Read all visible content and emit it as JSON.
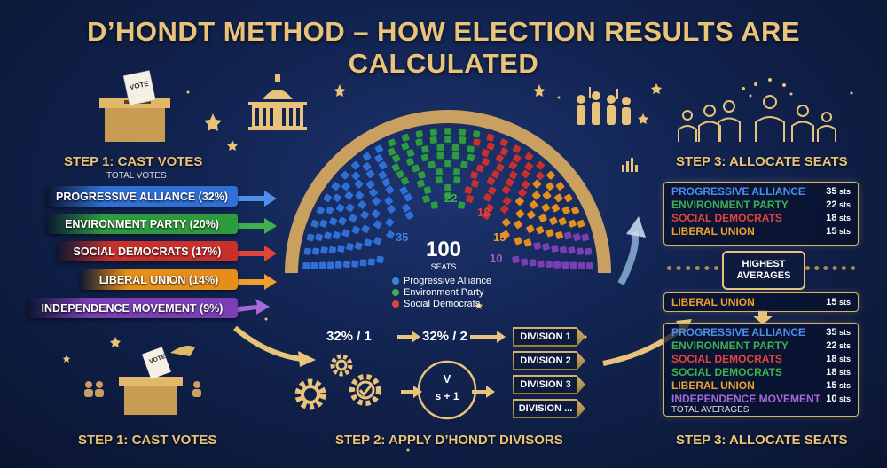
{
  "title": "D’HONDT METHOD – HOW ELECTION RESULTS ARE CALCULATED",
  "step1": {
    "heading": "STEP 1: CAST VOTES",
    "subheading": "TOTAL VOTES",
    "ballot_label": "VOTE",
    "parties": [
      {
        "label": "PROGRESSIVE ALLIANCE (32%)",
        "color": "#2f6fd6"
      },
      {
        "label": "ENVIRONMENT PARTY (20%)",
        "color": "#2e9a3e"
      },
      {
        "label": "SOCIAL DEMOCRATS (17%)",
        "color": "#c9302c"
      },
      {
        "label": "LIBERAL UNION (14%)",
        "color": "#e58e1a"
      },
      {
        "label": "INDEPENDENCE MOVEMENT (9%)",
        "color": "#7b3fb5"
      }
    ],
    "bottom_heading": "STEP 1: CAST VOTES",
    "bottom_ballot_label": "VOTE"
  },
  "parliament": {
    "total": "100",
    "total_label": "SEATS",
    "seat_labels": [
      {
        "value": "35",
        "color": "#3c82e0"
      },
      {
        "value": "22",
        "color": "#3fb04f"
      },
      {
        "value": "18",
        "color": "#e0453a"
      },
      {
        "value": "15",
        "color": "#f09a2a"
      },
      {
        "value": "10",
        "color": "#9b5fd0"
      }
    ],
    "legend": [
      {
        "label": "Progressive Alliance",
        "color": "#3c82e0"
      },
      {
        "label": "Environment Party",
        "color": "#3fb04f"
      },
      {
        "label": "Social Democrats",
        "color": "#e0453a"
      }
    ]
  },
  "chart_data": {
    "type": "parliament",
    "total_seats": 100,
    "categories": [
      "Progressive Alliance",
      "Environment Party",
      "Social Democrats",
      "Liberal Union",
      "Independence Movement"
    ],
    "values": [
      35,
      22,
      18,
      15,
      10
    ],
    "colors": [
      "#2f6fd6",
      "#2e9a3e",
      "#c9302c",
      "#e58e1a",
      "#7b3fb5"
    ]
  },
  "step2": {
    "heading": "STEP 2: APPLY D’HONDT DIVISORS",
    "calc1": "32% / 1",
    "calc2": "32% / 2",
    "formula_top": "V",
    "formula_bottom": "s + 1",
    "divisions": [
      "DIVISION 1",
      "DIVISION 2",
      "DIVISION 3",
      "DIVISION ..."
    ]
  },
  "step3": {
    "heading": "STEP 3: ALLOCATE SEATS",
    "bottom_heading": "STEP 3: ALLOCATE SEATS",
    "seat_unit": "sts",
    "top_panel": [
      {
        "name": "PROGRESSIVE ALLIANCE",
        "seats": "35",
        "color": "#4f8fe8"
      },
      {
        "name": "ENVIRONMENT PARTY",
        "seats": "22",
        "color": "#3fb04f"
      },
      {
        "name": "SOCIAL DEMOCRATS",
        "seats": "18",
        "color": "#e0453a"
      },
      {
        "name": "LIBERAL UNION",
        "seats": "15",
        "color": "#f0a02a"
      }
    ],
    "highest_averages": "HIGHEST AVERAGES",
    "single_row": {
      "name": "LIBERAL UNION",
      "seats": "15",
      "color": "#f0a02a"
    },
    "bottom_panel": [
      {
        "name": "PROGRESSIVE ALLIANCE",
        "seats": "35",
        "color": "#4f8fe8"
      },
      {
        "name": "ENVIRONMENT PARTY",
        "seats": "22",
        "color": "#3fb04f"
      },
      {
        "name": "SOCIAL DEMOCRATS",
        "seats": "18",
        "color": "#e0453a"
      },
      {
        "name": "SOCIAL DEMOCRATS",
        "seats": "18",
        "color": "#3fb04f"
      },
      {
        "name": "LIBERAL UNION",
        "seats": "15",
        "color": "#f0a02a"
      },
      {
        "name": "INDEPENDENCE MOVEMENT",
        "seats": "10",
        "color": "#a56ad8"
      }
    ],
    "total_averages": "TOTAL AVERAGES"
  }
}
